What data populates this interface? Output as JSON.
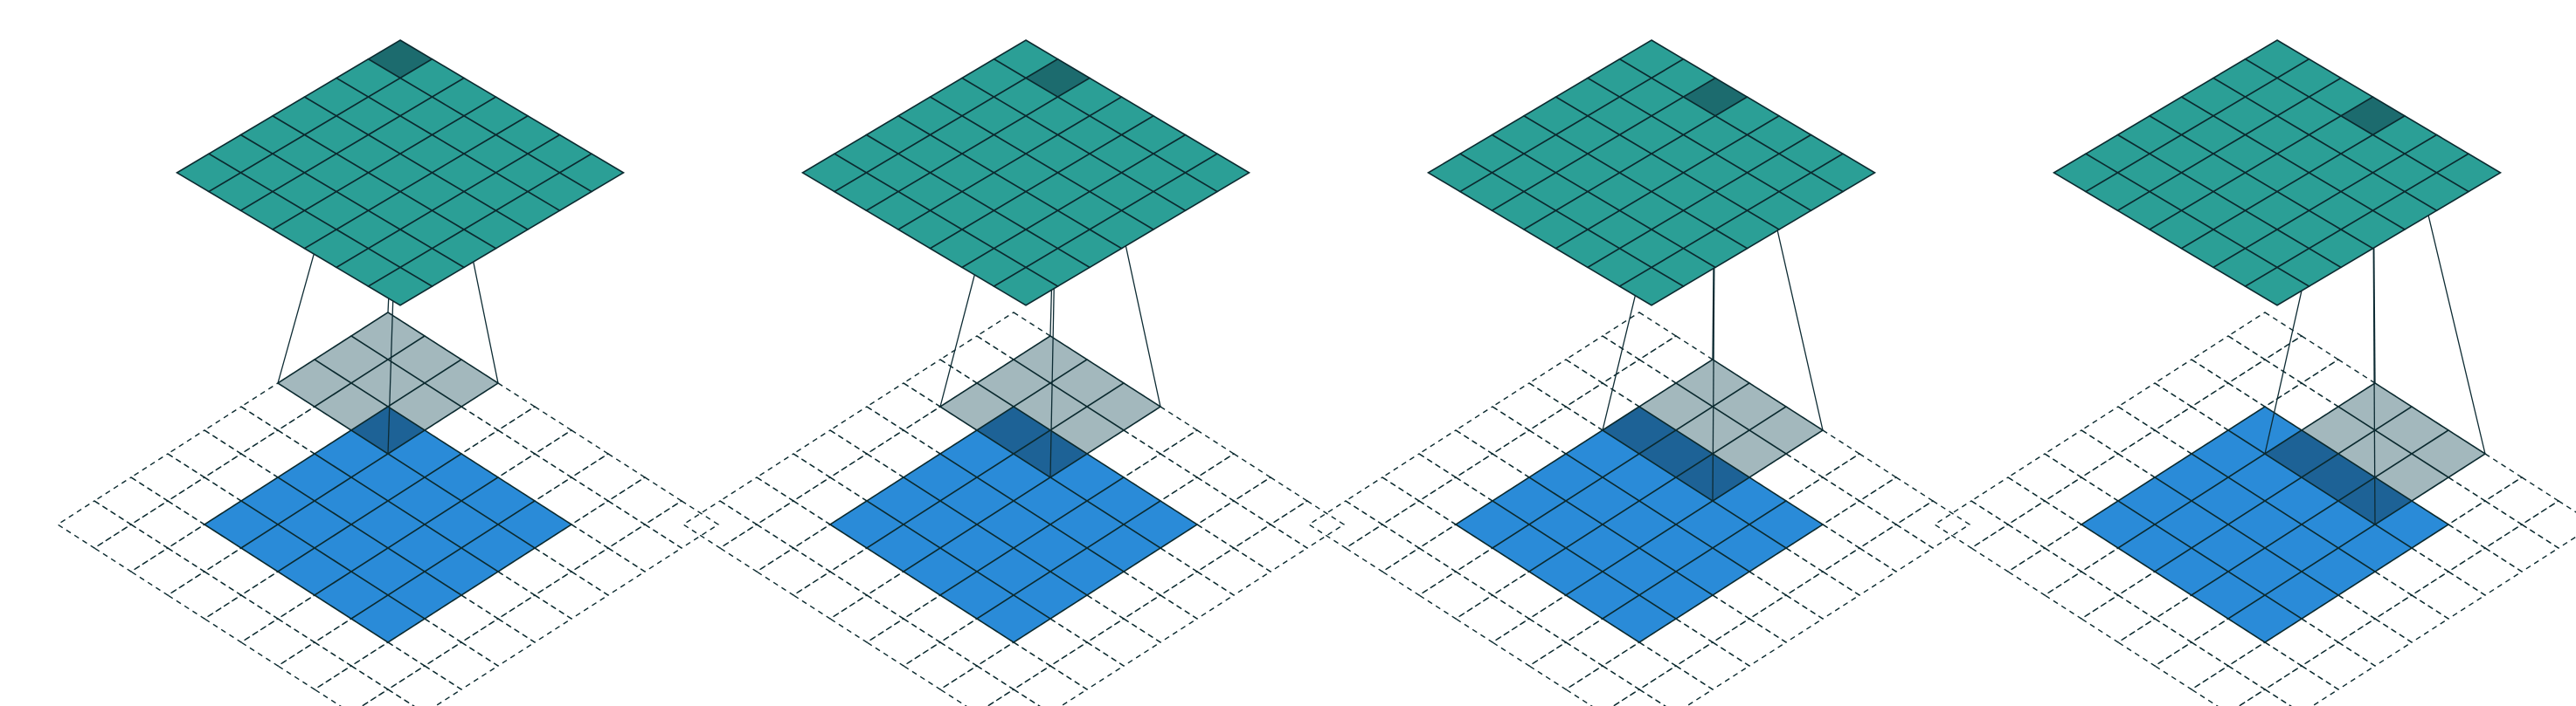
{
  "diagram": {
    "description_kind": "convolution-animation-frames",
    "panel_count": 4,
    "input": {
      "rows": 5,
      "cols": 5,
      "padding": 2,
      "color": "#2a8bd8"
    },
    "kernel": {
      "size": 3,
      "color": "#a3b8bd",
      "overlap_color": "#1d6296"
    },
    "output": {
      "rows": 7,
      "cols": 7,
      "color": "#2b9f96",
      "highlight_color": "#1c6b6e"
    },
    "line_color": "#0d2b33",
    "grid_line_color": "#0b2a2f",
    "frames": [
      {
        "kernel_row": 0,
        "kernel_col": 0,
        "output_row": 0,
        "output_col": 0
      },
      {
        "kernel_row": 0,
        "kernel_col": 1,
        "output_row": 0,
        "output_col": 1
      },
      {
        "kernel_row": 0,
        "kernel_col": 2,
        "output_row": 0,
        "output_col": 2
      },
      {
        "kernel_row": 0,
        "kernel_col": 3,
        "output_row": 0,
        "output_col": 3
      }
    ]
  }
}
